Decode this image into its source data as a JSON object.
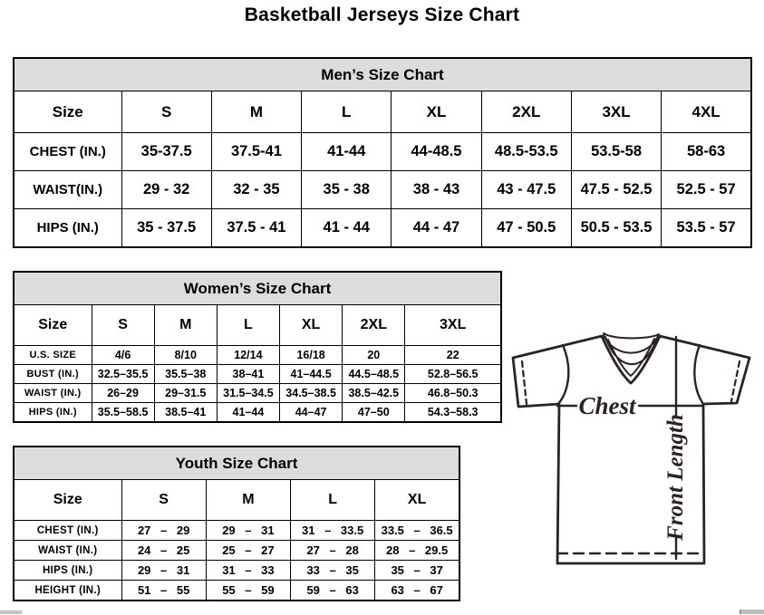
{
  "title": "Basketball Jerseys Size Chart",
  "mens": {
    "header": "Men’s Size Chart",
    "columns": [
      "Size",
      "S",
      "M",
      "L",
      "XL",
      "2XL",
      "3XL",
      "4XL"
    ],
    "rows": [
      {
        "label": "CHEST (IN.)",
        "values": [
          "35-37.5",
          "37.5-41",
          "41-44",
          "44-48.5",
          "48.5-53.5",
          "53.5-58",
          "58-63"
        ]
      },
      {
        "label": "WAIST(IN.)",
        "values": [
          "29 - 32",
          "32 - 35",
          "35 - 38",
          "38 - 43",
          "43 - 47.5",
          "47.5 - 52.5",
          "52.5 - 57"
        ]
      },
      {
        "label": "HIPS (IN.)",
        "values": [
          "35 - 37.5",
          "37.5 - 41",
          "41 - 44",
          "44 - 47",
          "47 - 50.5",
          "50.5 - 53.5",
          "53.5 - 57"
        ]
      }
    ]
  },
  "womens": {
    "header": "Women’s Size Chart",
    "columns": [
      "Size",
      "S",
      "M",
      "L",
      "XL",
      "2XL",
      "3XL"
    ],
    "rows": [
      {
        "label": "U.S. SIZE",
        "values": [
          "4/6",
          "8/10",
          "12/14",
          "16/18",
          "20",
          "22"
        ]
      },
      {
        "label": "BUST (IN.)",
        "values": [
          "32.5–35.5",
          "35.5–38",
          "38–41",
          "41–44.5",
          "44.5–48.5",
          "52.8–56.5"
        ]
      },
      {
        "label": "WAIST (IN.)",
        "values": [
          "26–29",
          "29–31.5",
          "31.5–34.5",
          "34.5–38.5",
          "38.5–42.5",
          "46.8–50.3"
        ]
      },
      {
        "label": "HIPS (IN.)",
        "values": [
          "35.5–58.5",
          "38.5–41",
          "41–44",
          "44–47",
          "47–50",
          "54.3–58.3"
        ]
      }
    ]
  },
  "youth": {
    "header": "Youth Size Chart",
    "columns": [
      "Size",
      "S",
      "M",
      "L",
      "XL"
    ],
    "rows": [
      {
        "label": "CHEST (IN.)",
        "values": [
          "27 – 29",
          "29 – 31",
          "31 – 33.5",
          "33.5 – 36.5"
        ]
      },
      {
        "label": "WAIST (IN.)",
        "values": [
          "24 – 25",
          "25 – 27",
          "27 – 28",
          "28 – 29.5"
        ]
      },
      {
        "label": "HIPS (IN.)",
        "values": [
          "29 – 31",
          "31 – 33",
          "33 – 35",
          "35 – 37"
        ]
      },
      {
        "label": "HEIGHT (IN.)",
        "values": [
          "51 – 55",
          "55 – 59",
          "59 – 63",
          "63 – 67"
        ]
      }
    ]
  },
  "diagram": {
    "chest_label": "Chest",
    "front_length_label": "Front Length"
  },
  "colors": {
    "table_header_bg": "#dcdcdc",
    "table_border": "#000000",
    "diagram_stroke": "#2b2320",
    "scrollbar": "#c4c4c4"
  }
}
